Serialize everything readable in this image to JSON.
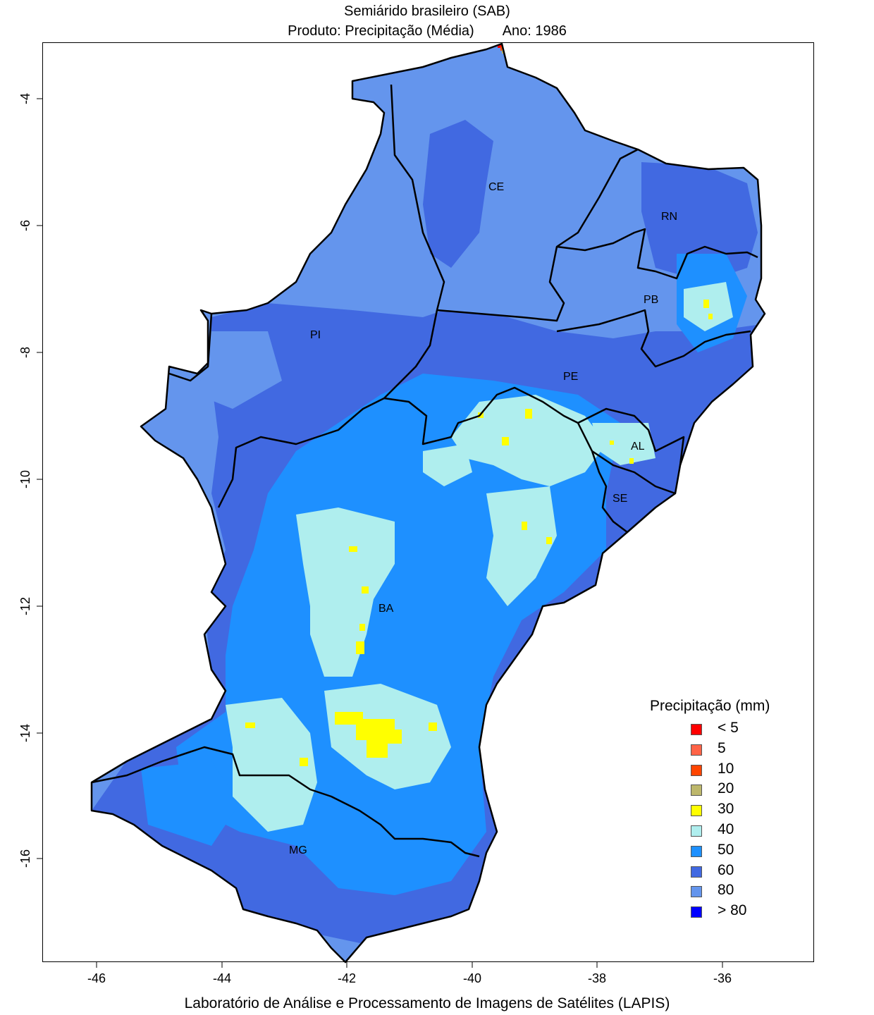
{
  "title": {
    "line1": "Semiárido brasileiro (SAB)",
    "product": "Produto: Precipitação (Média)",
    "year": "Ano:  1986"
  },
  "footer": "Laboratório de Análise e Processamento de Imagens de Satélites (LAPIS)",
  "axes": {
    "x_ticks": [
      "-46",
      "-44",
      "-42",
      "-40",
      "-38",
      "-36"
    ],
    "y_ticks": [
      "-4",
      "-6",
      "-8",
      "-10",
      "-12",
      "-14",
      "-16"
    ]
  },
  "legend": {
    "title": "Precipitação (mm)",
    "items": [
      {
        "label": "< 5",
        "color": "#ff0000"
      },
      {
        "label": "5",
        "color": "#ff6347"
      },
      {
        "label": "10",
        "color": "#ff4500"
      },
      {
        "label": "20",
        "color": "#bdb76b"
      },
      {
        "label": "30",
        "color": "#ffff00"
      },
      {
        "label": "40",
        "color": "#afeeee"
      },
      {
        "label": "50",
        "color": "#1e90ff"
      },
      {
        "label": "60",
        "color": "#4169e1"
      },
      {
        "label": "80",
        "color": "#6495ed"
      },
      {
        "label": "> 80",
        "color": "#0000ff"
      }
    ]
  },
  "state_labels": {
    "CE": "CE",
    "RN": "RN",
    "PB": "PB",
    "PE": "PE",
    "PI": "PI",
    "AL": "AL",
    "SE": "SE",
    "BA": "BA",
    "MG": "MG"
  }
}
